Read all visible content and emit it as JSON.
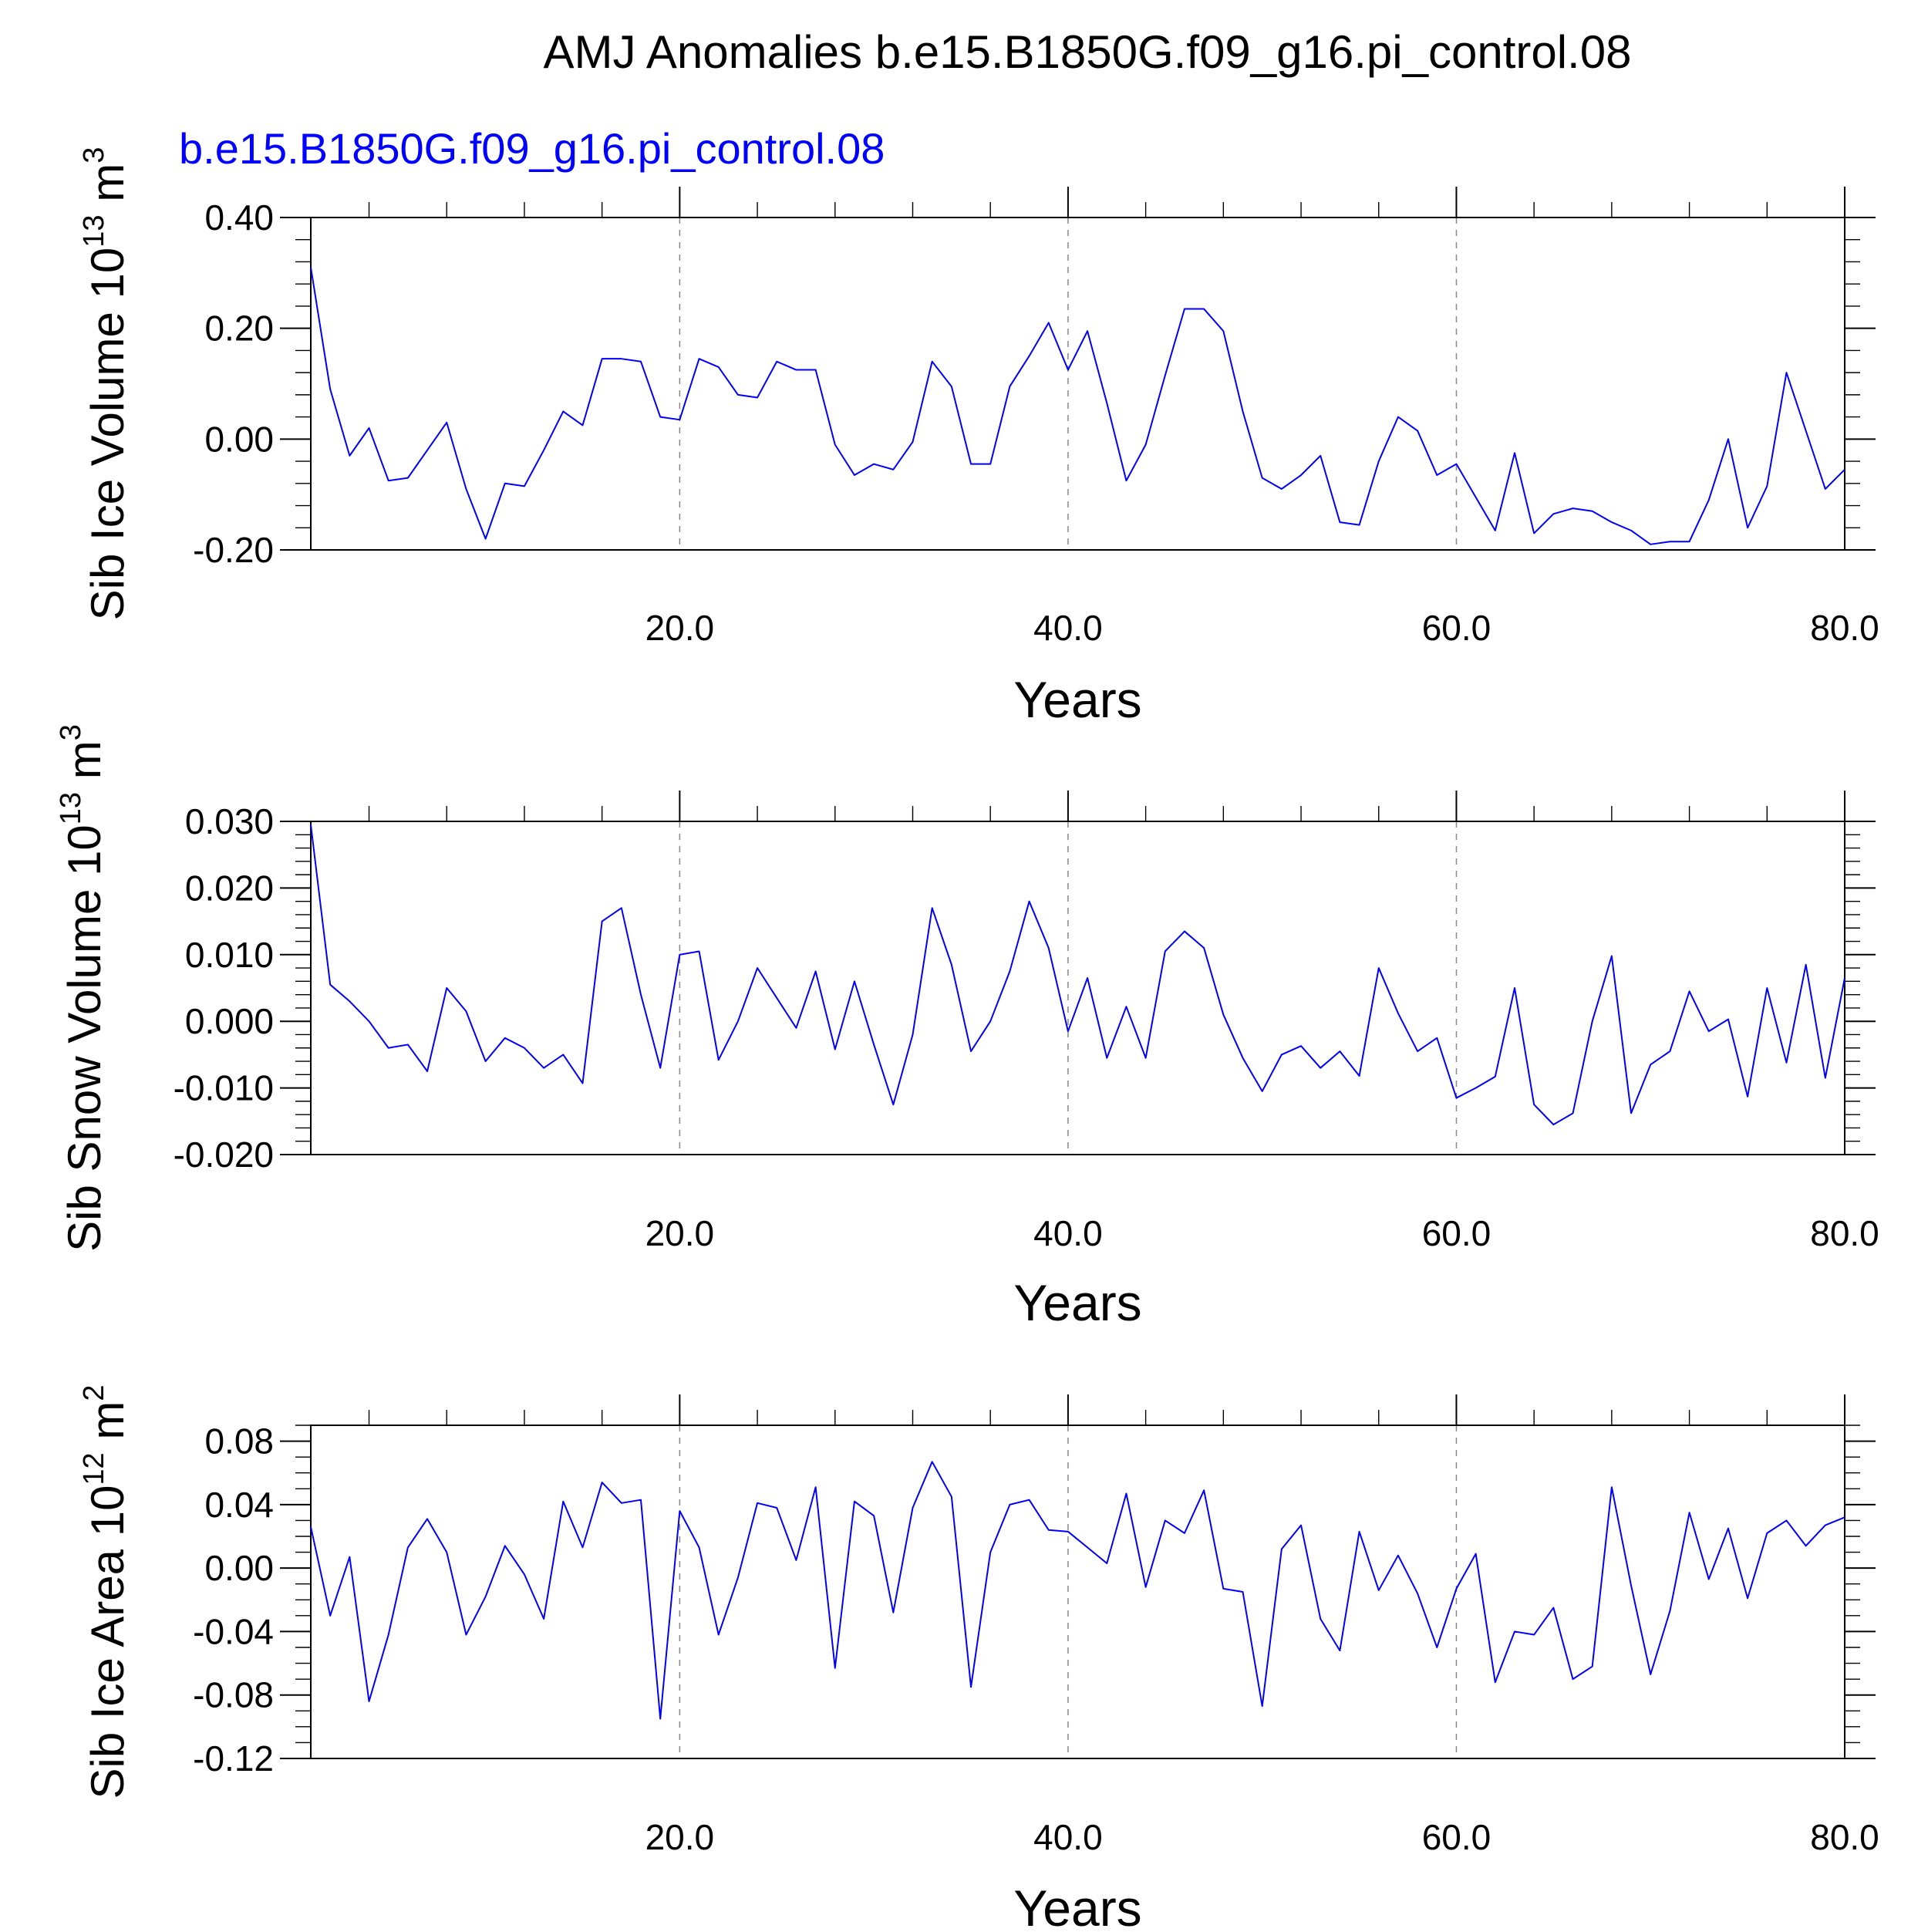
{
  "title": "AMJ Anomalies b.e15.B1850G.f09_g16.pi_control.08",
  "colors": {
    "series": "#0000ff",
    "subtitle": "#0000ff",
    "grid": "#888888",
    "axes": "#000000"
  },
  "chart_data": [
    {
      "type": "line",
      "subtitle": "b.e15.B1850G.f09_g16.pi_control.08",
      "xlabel": "Years",
      "ylabel": {
        "text": "Sib Ice Volume 10",
        "superscript": "13",
        "unit": " m",
        "unit_superscript": "3"
      },
      "xlim": [
        1,
        80
      ],
      "ylim": [
        -0.2,
        0.4
      ],
      "xticks": [
        20,
        40,
        60,
        80
      ],
      "xtick_labels": [
        "20.0",
        "40.0",
        "60.0",
        "80.0"
      ],
      "x_minor_step": 4,
      "yticks": [
        -0.2,
        0.0,
        0.2,
        0.4
      ],
      "ytick_labels": [
        "-0.20",
        "0.00",
        "0.20",
        "0.40"
      ],
      "y_minor_step": 0.04,
      "grid": "vertical dashed at major x ticks",
      "x": [
        1,
        2,
        3,
        4,
        5,
        6,
        7,
        8,
        9,
        10,
        11,
        12,
        13,
        14,
        15,
        16,
        17,
        18,
        19,
        20,
        21,
        22,
        23,
        24,
        25,
        26,
        27,
        28,
        29,
        30,
        31,
        32,
        33,
        34,
        35,
        36,
        37,
        38,
        39,
        40,
        41,
        42,
        43,
        44,
        45,
        46,
        47,
        48,
        49,
        50,
        51,
        52,
        53,
        54,
        55,
        56,
        57,
        58,
        59,
        60,
        61,
        62,
        63,
        64,
        65,
        66,
        67,
        68,
        69,
        70,
        71,
        72,
        73,
        74,
        75,
        76,
        77,
        78,
        79,
        80
      ],
      "series": [
        {
          "values": [
            0.31,
            0.09,
            -0.03,
            0.02,
            -0.075,
            -0.07,
            -0.02,
            0.03,
            -0.09,
            -0.18,
            -0.08,
            -0.085,
            -0.02,
            0.05,
            0.025,
            0.145,
            0.145,
            0.14,
            0.04,
            0.035,
            0.145,
            0.13,
            0.08,
            0.075,
            0.14,
            0.125,
            0.125,
            -0.01,
            -0.065,
            -0.045,
            -0.055,
            -0.005,
            0.14,
            0.095,
            -0.045,
            -0.045,
            0.095,
            0.15,
            0.21,
            0.125,
            0.195,
            0.065,
            -0.075,
            -0.01,
            0.115,
            0.235,
            0.235,
            0.195,
            0.05,
            -0.07,
            -0.09,
            -0.065,
            -0.03,
            -0.15,
            -0.155,
            -0.04,
            0.04,
            0.015,
            -0.065,
            -0.045,
            -0.105,
            -0.165,
            -0.025,
            -0.17,
            -0.135,
            -0.125,
            -0.13,
            -0.15,
            -0.165,
            -0.19,
            -0.185,
            -0.185,
            -0.11,
            0.0,
            -0.16,
            -0.085,
            0.12,
            0.015,
            -0.09,
            -0.055
          ]
        }
      ]
    },
    {
      "type": "line",
      "xlabel": "Years",
      "ylabel": {
        "text": "Sib Snow Volume 10",
        "superscript": "13",
        "unit": " m",
        "unit_superscript": "3"
      },
      "xlim": [
        1,
        80
      ],
      "ylim": [
        -0.02,
        0.03
      ],
      "xticks": [
        20,
        40,
        60,
        80
      ],
      "xtick_labels": [
        "20.0",
        "40.0",
        "60.0",
        "80.0"
      ],
      "x_minor_step": 4,
      "yticks": [
        -0.02,
        -0.01,
        0.0,
        0.01,
        0.02,
        0.03
      ],
      "ytick_labels": [
        "-0.020",
        "-0.010",
        "0.000",
        "0.010",
        "0.020",
        "0.030"
      ],
      "y_minor_step": 0.002,
      "grid": "vertical dashed at major x ticks",
      "x": [
        1,
        2,
        3,
        4,
        5,
        6,
        7,
        8,
        9,
        10,
        11,
        12,
        13,
        14,
        15,
        16,
        17,
        18,
        19,
        20,
        21,
        22,
        23,
        24,
        25,
        26,
        27,
        28,
        29,
        30,
        31,
        32,
        33,
        34,
        35,
        36,
        37,
        38,
        39,
        40,
        41,
        42,
        43,
        44,
        45,
        46,
        47,
        48,
        49,
        50,
        51,
        52,
        53,
        54,
        55,
        56,
        57,
        58,
        59,
        60,
        61,
        62,
        63,
        64,
        65,
        66,
        67,
        68,
        69,
        70,
        71,
        72,
        73,
        74,
        75,
        76,
        77,
        78,
        79,
        80
      ],
      "series": [
        {
          "values": [
            0.0295,
            0.0055,
            0.003,
            0.0,
            -0.004,
            -0.0035,
            -0.0075,
            0.005,
            0.0015,
            -0.006,
            -0.0025,
            -0.004,
            -0.007,
            -0.005,
            -0.0093,
            0.015,
            0.017,
            0.004,
            -0.007,
            0.01,
            0.0105,
            -0.0058,
            0.0,
            0.008,
            0.0035,
            -0.001,
            0.0075,
            -0.0042,
            0.006,
            -0.0035,
            -0.0125,
            -0.002,
            0.017,
            0.0085,
            -0.0045,
            0.0,
            0.0075,
            0.018,
            0.011,
            -0.0015,
            0.0065,
            -0.0055,
            0.0022,
            -0.0055,
            0.0105,
            0.0135,
            0.011,
            0.001,
            -0.0055,
            -0.0105,
            -0.005,
            -0.0037,
            -0.007,
            -0.0045,
            -0.0082,
            0.008,
            0.0012,
            -0.0045,
            -0.0025,
            -0.0115,
            -0.01,
            -0.0083,
            0.005,
            -0.0125,
            -0.0155,
            -0.0138,
            0.0,
            0.0098,
            -0.0138,
            -0.0065,
            -0.0045,
            0.0045,
            -0.0015,
            0.0003,
            -0.0113,
            0.005,
            -0.0062,
            0.0085,
            -0.0085,
            0.0065
          ]
        }
      ]
    },
    {
      "type": "line",
      "xlabel": "Years",
      "ylabel": {
        "text": "Sib Ice Area 10",
        "superscript": "12",
        "unit": " m",
        "unit_superscript": "2"
      },
      "xlim": [
        1,
        80
      ],
      "ylim": [
        -0.12,
        0.09
      ],
      "xticks": [
        20,
        40,
        60,
        80
      ],
      "xtick_labels": [
        "20.0",
        "40.0",
        "60.0",
        "80.0"
      ],
      "x_minor_step": 4,
      "yticks": [
        -0.12,
        -0.08,
        -0.04,
        0.0,
        0.04,
        0.08
      ],
      "ytick_labels": [
        "-0.12",
        "-0.08",
        "-0.04",
        "0.00",
        "0.04",
        "0.08"
      ],
      "y_minor_step": 0.01,
      "grid": "vertical dashed at major x ticks",
      "x": [
        1,
        2,
        3,
        4,
        5,
        6,
        7,
        8,
        9,
        10,
        11,
        12,
        13,
        14,
        15,
        16,
        17,
        18,
        19,
        20,
        21,
        22,
        23,
        24,
        25,
        26,
        27,
        28,
        29,
        30,
        31,
        32,
        33,
        34,
        35,
        36,
        37,
        38,
        39,
        40,
        41,
        42,
        43,
        44,
        45,
        46,
        47,
        48,
        49,
        50,
        51,
        52,
        53,
        54,
        55,
        56,
        57,
        58,
        59,
        60,
        61,
        62,
        63,
        64,
        65,
        66,
        67,
        68,
        69,
        70,
        71,
        72,
        73,
        74,
        75,
        76,
        77,
        78,
        79,
        80
      ],
      "series": [
        {
          "values": [
            0.026,
            -0.03,
            0.007,
            -0.084,
            -0.042,
            0.013,
            0.031,
            0.01,
            -0.042,
            -0.018,
            0.014,
            -0.004,
            -0.032,
            0.042,
            0.013,
            0.054,
            0.041,
            0.043,
            -0.095,
            0.036,
            0.013,
            -0.042,
            -0.006,
            0.041,
            0.038,
            0.005,
            0.051,
            -0.063,
            0.042,
            0.033,
            -0.028,
            0.038,
            0.067,
            0.045,
            -0.075,
            0.01,
            0.04,
            0.043,
            0.024,
            0.023,
            0.013,
            0.003,
            0.047,
            -0.012,
            0.03,
            0.022,
            0.049,
            -0.013,
            -0.015,
            -0.087,
            0.012,
            0.027,
            -0.032,
            -0.052,
            0.023,
            -0.014,
            0.008,
            -0.016,
            -0.05,
            -0.013,
            0.009,
            -0.072,
            -0.04,
            -0.042,
            -0.025,
            -0.07,
            -0.062,
            0.051,
            -0.011,
            -0.067,
            -0.027,
            0.035,
            -0.007,
            0.025,
            -0.019,
            0.022,
            0.03,
            0.014,
            0.027,
            0.032
          ]
        }
      ]
    }
  ]
}
